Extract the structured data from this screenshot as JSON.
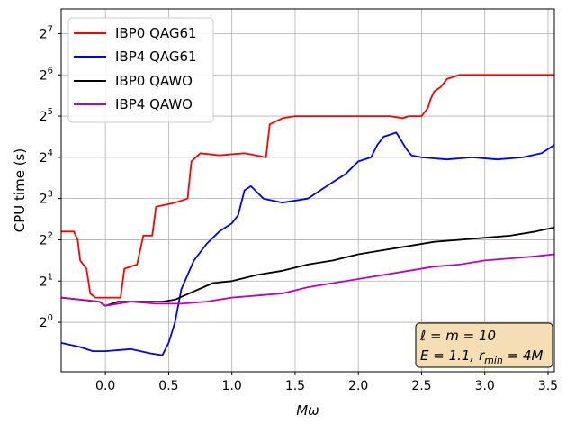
{
  "chart_data": {
    "type": "line",
    "xlabel": "Mω",
    "ylabel": "CPU time (s)",
    "xlim": [
      -0.35,
      3.55
    ],
    "ylim_log2": [
      -1.2,
      7.6
    ],
    "y_scale": "log2",
    "grid": true,
    "legend_position": "top-left",
    "x_ticks": [
      0.0,
      0.5,
      1.0,
      1.5,
      2.0,
      2.5,
      3.0,
      3.5
    ],
    "x_tick_labels": [
      "0.0",
      "0.5",
      "1.0",
      "1.5",
      "2.0",
      "2.5",
      "3.0",
      "3.5"
    ],
    "y_tick_exponents": [
      0,
      1,
      2,
      3,
      4,
      5,
      6,
      7
    ],
    "y_tick_base": "2",
    "annotation": {
      "line1": "ℓ = m = 10",
      "line2": "E = 1.1, r_min = 4M",
      "line2_main": "E = 1.1, r",
      "line2_sub": "min",
      "line2_tail": " = 4M",
      "background": "#f5deb3"
    },
    "series": [
      {
        "name": "IBP0 QAG61",
        "color": "#ff0000",
        "points": [
          [
            -0.35,
            2.2
          ],
          [
            -0.25,
            2.2
          ],
          [
            -0.22,
            2.0
          ],
          [
            -0.2,
            1.5
          ],
          [
            -0.15,
            1.3
          ],
          [
            -0.12,
            0.7
          ],
          [
            -0.08,
            0.6
          ],
          [
            0.05,
            0.6
          ],
          [
            0.12,
            0.6
          ],
          [
            0.15,
            1.3
          ],
          [
            0.25,
            1.4
          ],
          [
            0.3,
            2.1
          ],
          [
            0.37,
            2.1
          ],
          [
            0.4,
            2.8
          ],
          [
            0.55,
            2.9
          ],
          [
            0.65,
            3.0
          ],
          [
            0.68,
            3.9
          ],
          [
            0.75,
            4.1
          ],
          [
            0.9,
            4.05
          ],
          [
            1.1,
            4.1
          ],
          [
            1.27,
            4.0
          ],
          [
            1.3,
            4.8
          ],
          [
            1.4,
            4.95
          ],
          [
            1.5,
            5.0
          ],
          [
            1.8,
            5.0
          ],
          [
            2.0,
            5.0
          ],
          [
            2.15,
            5.0
          ],
          [
            2.25,
            5.0
          ],
          [
            2.35,
            4.95
          ],
          [
            2.4,
            5.0
          ],
          [
            2.5,
            5.0
          ],
          [
            2.55,
            5.2
          ],
          [
            2.57,
            5.4
          ],
          [
            2.6,
            5.6
          ],
          [
            2.65,
            5.7
          ],
          [
            2.7,
            5.9
          ],
          [
            2.8,
            6.0
          ],
          [
            3.0,
            6.0
          ],
          [
            3.2,
            6.0
          ],
          [
            3.55,
            6.0
          ]
        ]
      },
      {
        "name": "IBP4 QAG61",
        "color": "#0000ff",
        "points": [
          [
            -0.35,
            -0.5
          ],
          [
            -0.2,
            -0.6
          ],
          [
            -0.1,
            -0.7
          ],
          [
            0.0,
            -0.7
          ],
          [
            0.2,
            -0.65
          ],
          [
            0.35,
            -0.75
          ],
          [
            0.45,
            -0.8
          ],
          [
            0.5,
            -0.5
          ],
          [
            0.55,
            0.0
          ],
          [
            0.6,
            0.8
          ],
          [
            0.7,
            1.5
          ],
          [
            0.8,
            1.9
          ],
          [
            0.9,
            2.2
          ],
          [
            1.0,
            2.4
          ],
          [
            1.05,
            2.6
          ],
          [
            1.1,
            3.2
          ],
          [
            1.15,
            3.3
          ],
          [
            1.25,
            3.0
          ],
          [
            1.4,
            2.9
          ],
          [
            1.6,
            3.0
          ],
          [
            1.8,
            3.4
          ],
          [
            1.9,
            3.6
          ],
          [
            2.0,
            3.9
          ],
          [
            2.1,
            4.0
          ],
          [
            2.15,
            4.3
          ],
          [
            2.2,
            4.5
          ],
          [
            2.3,
            4.6
          ],
          [
            2.38,
            4.2
          ],
          [
            2.42,
            4.05
          ],
          [
            2.5,
            4.0
          ],
          [
            2.7,
            3.95
          ],
          [
            2.9,
            4.0
          ],
          [
            3.1,
            3.95
          ],
          [
            3.3,
            4.0
          ],
          [
            3.45,
            4.1
          ],
          [
            3.55,
            4.3
          ]
        ]
      },
      {
        "name": "IBP0 QAWO",
        "color": "#000000",
        "points": [
          [
            -0.35,
            0.6
          ],
          [
            -0.2,
            0.55
          ],
          [
            -0.05,
            0.5
          ],
          [
            0.0,
            0.4
          ],
          [
            0.1,
            0.5
          ],
          [
            0.3,
            0.5
          ],
          [
            0.45,
            0.5
          ],
          [
            0.55,
            0.55
          ],
          [
            0.7,
            0.75
          ],
          [
            0.85,
            0.95
          ],
          [
            1.0,
            1.0
          ],
          [
            1.2,
            1.15
          ],
          [
            1.4,
            1.25
          ],
          [
            1.6,
            1.4
          ],
          [
            1.8,
            1.5
          ],
          [
            2.0,
            1.65
          ],
          [
            2.2,
            1.75
          ],
          [
            2.4,
            1.85
          ],
          [
            2.6,
            1.95
          ],
          [
            2.8,
            2.0
          ],
          [
            3.0,
            2.05
          ],
          [
            3.2,
            2.1
          ],
          [
            3.4,
            2.2
          ],
          [
            3.55,
            2.3
          ]
        ]
      },
      {
        "name": "IBP4 QAWO",
        "color": "#c000c0",
        "points": [
          [
            -0.35,
            0.6
          ],
          [
            -0.2,
            0.55
          ],
          [
            -0.05,
            0.5
          ],
          [
            0.0,
            0.4
          ],
          [
            0.2,
            0.5
          ],
          [
            0.4,
            0.45
          ],
          [
            0.6,
            0.45
          ],
          [
            0.8,
            0.5
          ],
          [
            1.0,
            0.6
          ],
          [
            1.2,
            0.65
          ],
          [
            1.4,
            0.7
          ],
          [
            1.6,
            0.85
          ],
          [
            1.8,
            0.95
          ],
          [
            2.0,
            1.05
          ],
          [
            2.2,
            1.15
          ],
          [
            2.4,
            1.25
          ],
          [
            2.6,
            1.35
          ],
          [
            2.8,
            1.4
          ],
          [
            3.0,
            1.5
          ],
          [
            3.2,
            1.55
          ],
          [
            3.4,
            1.6
          ],
          [
            3.55,
            1.65
          ]
        ]
      }
    ]
  }
}
